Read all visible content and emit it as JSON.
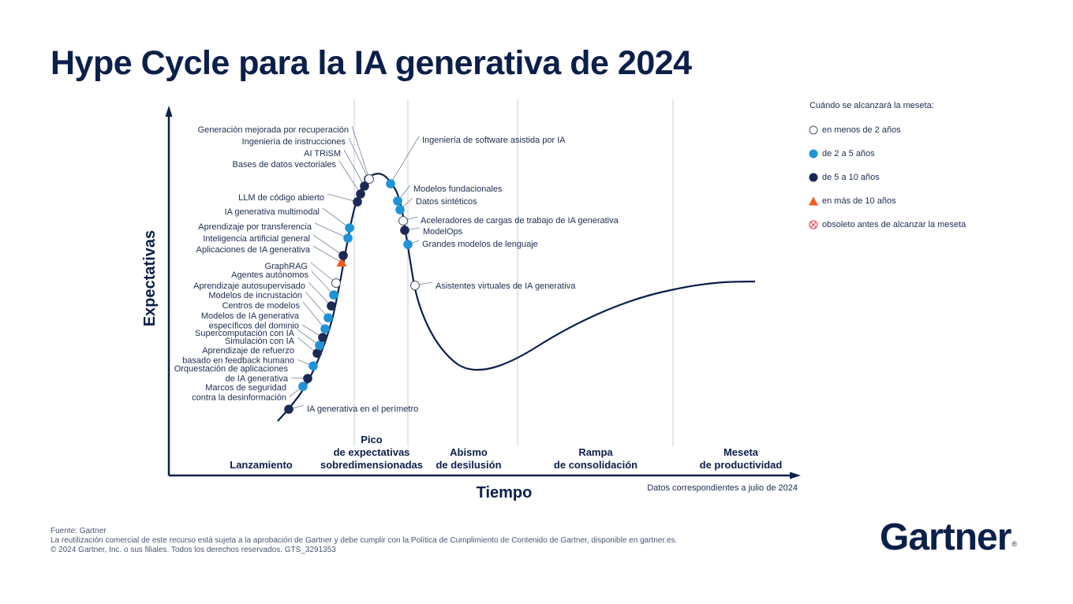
{
  "title": "Hype Cycle para la IA generativa de 2024",
  "axes": {
    "y_label": "Expectativas",
    "x_label": "Tiempo"
  },
  "phases": [
    {
      "label": "Lanzamiento",
      "lines": [
        "Lanzamiento"
      ]
    },
    {
      "label": "Pico de expectativas sobredimensionadas",
      "lines": [
        "Pico",
        "de expectativas",
        "sobredimensionadas"
      ]
    },
    {
      "label": "Abismo de desilusión",
      "lines": [
        "Abismo",
        "de desilusión"
      ]
    },
    {
      "label": "Rampa de consolidación",
      "lines": [
        "Rampa",
        "de consolidación"
      ]
    },
    {
      "label": "Meseta de productividad",
      "lines": [
        "Meseta",
        "de productividad"
      ]
    }
  ],
  "legend": {
    "title": "Cuándo se alcanzará la meseta:",
    "items": [
      {
        "key": "lt2",
        "label": "en menos de 2 años",
        "shape": "circle-open"
      },
      {
        "key": "2to5",
        "label": "de 2 a 5 años",
        "shape": "circle-light"
      },
      {
        "key": "5to10",
        "label": "de 5 a 10 años",
        "shape": "circle-dark"
      },
      {
        "key": "gt10",
        "label": "en más de 10 años",
        "shape": "triangle"
      },
      {
        "key": "obsolete",
        "label": "obsoleto antes de alcanzar la meseta",
        "shape": "circle-cross"
      }
    ]
  },
  "colors": {
    "navy": "#0b1f4b",
    "light_blue": "#1e93d8",
    "dark_blue": "#1a2a55",
    "orange": "#f15a22",
    "red": "#e8303a",
    "divider": "#d3d7de"
  },
  "technologies": [
    {
      "name": "IA generativa en el perímetro",
      "category": "5to10"
    },
    {
      "name": "Marcos de seguridad contra la desinformación",
      "category": "2to5"
    },
    {
      "name": "Orquestación de aplicaciones de IA generativa",
      "category": "5to10"
    },
    {
      "name": "Aprendizaje de refuerzo basado en feedback humano",
      "category": "2to5"
    },
    {
      "name": "Simulación con IA",
      "category": "5to10"
    },
    {
      "name": "Supercomputación con IA",
      "category": "2to5"
    },
    {
      "name": "Modelos de IA generativa específicos del dominio",
      "category": "5to10"
    },
    {
      "name": "Centros de modelos",
      "category": "2to5"
    },
    {
      "name": "Modelos de incrustación",
      "category": "2to5"
    },
    {
      "name": "Aprendizaje autosupervisado",
      "category": "5to10"
    },
    {
      "name": "Agentes autónomos",
      "category": "2to5"
    },
    {
      "name": "GraphRAG",
      "category": "lt2"
    },
    {
      "name": "Aplicaciones de IA generativa",
      "category": "gt10"
    },
    {
      "name": "Inteligencia artificial general",
      "category": "5to10"
    },
    {
      "name": "Aprendizaje por transferencia",
      "category": "2to5"
    },
    {
      "name": "IA generativa multimodal",
      "category": "2to5"
    },
    {
      "name": "LLM de código abierto",
      "category": "5to10"
    },
    {
      "name": "Bases de datos vectoriales",
      "category": "5to10"
    },
    {
      "name": "AI TRiSM",
      "category": "5to10"
    },
    {
      "name": "Ingeniería de instrucciones",
      "category": "5to10"
    },
    {
      "name": "Generación mejorada por recuperación",
      "category": "lt2"
    },
    {
      "name": "Ingeniería de software asistida por IA",
      "category": "2to5"
    },
    {
      "name": "Modelos fundacionales",
      "category": "2to5"
    },
    {
      "name": "Datos sintéticos",
      "category": "2to5"
    },
    {
      "name": "Aceleradores de cargas de trabajo de IA generativa",
      "category": "lt2"
    },
    {
      "name": "ModelOps",
      "category": "5to10"
    },
    {
      "name": "Grandes modelos de lenguaje",
      "category": "2to5"
    },
    {
      "name": "Asistentes virtuales de IA generativa",
      "category": "lt2"
    }
  ],
  "note": "Datos correspondientes a julio de 2024",
  "footer": {
    "source": "Fuente: Gartner",
    "license": "La reutilización comercial de este recurso está sujeta a la aprobación de Gartner y debe cumplir con la Política de Cumplimiento de Contenido de Gartner, disponible en gartner.es.",
    "copyright": "© 2024 Gartner, Inc. o sus filiales. Todos los derechos reservados. GTS_3291353"
  },
  "brand": {
    "name": "Gartner",
    "reg": "®"
  }
}
